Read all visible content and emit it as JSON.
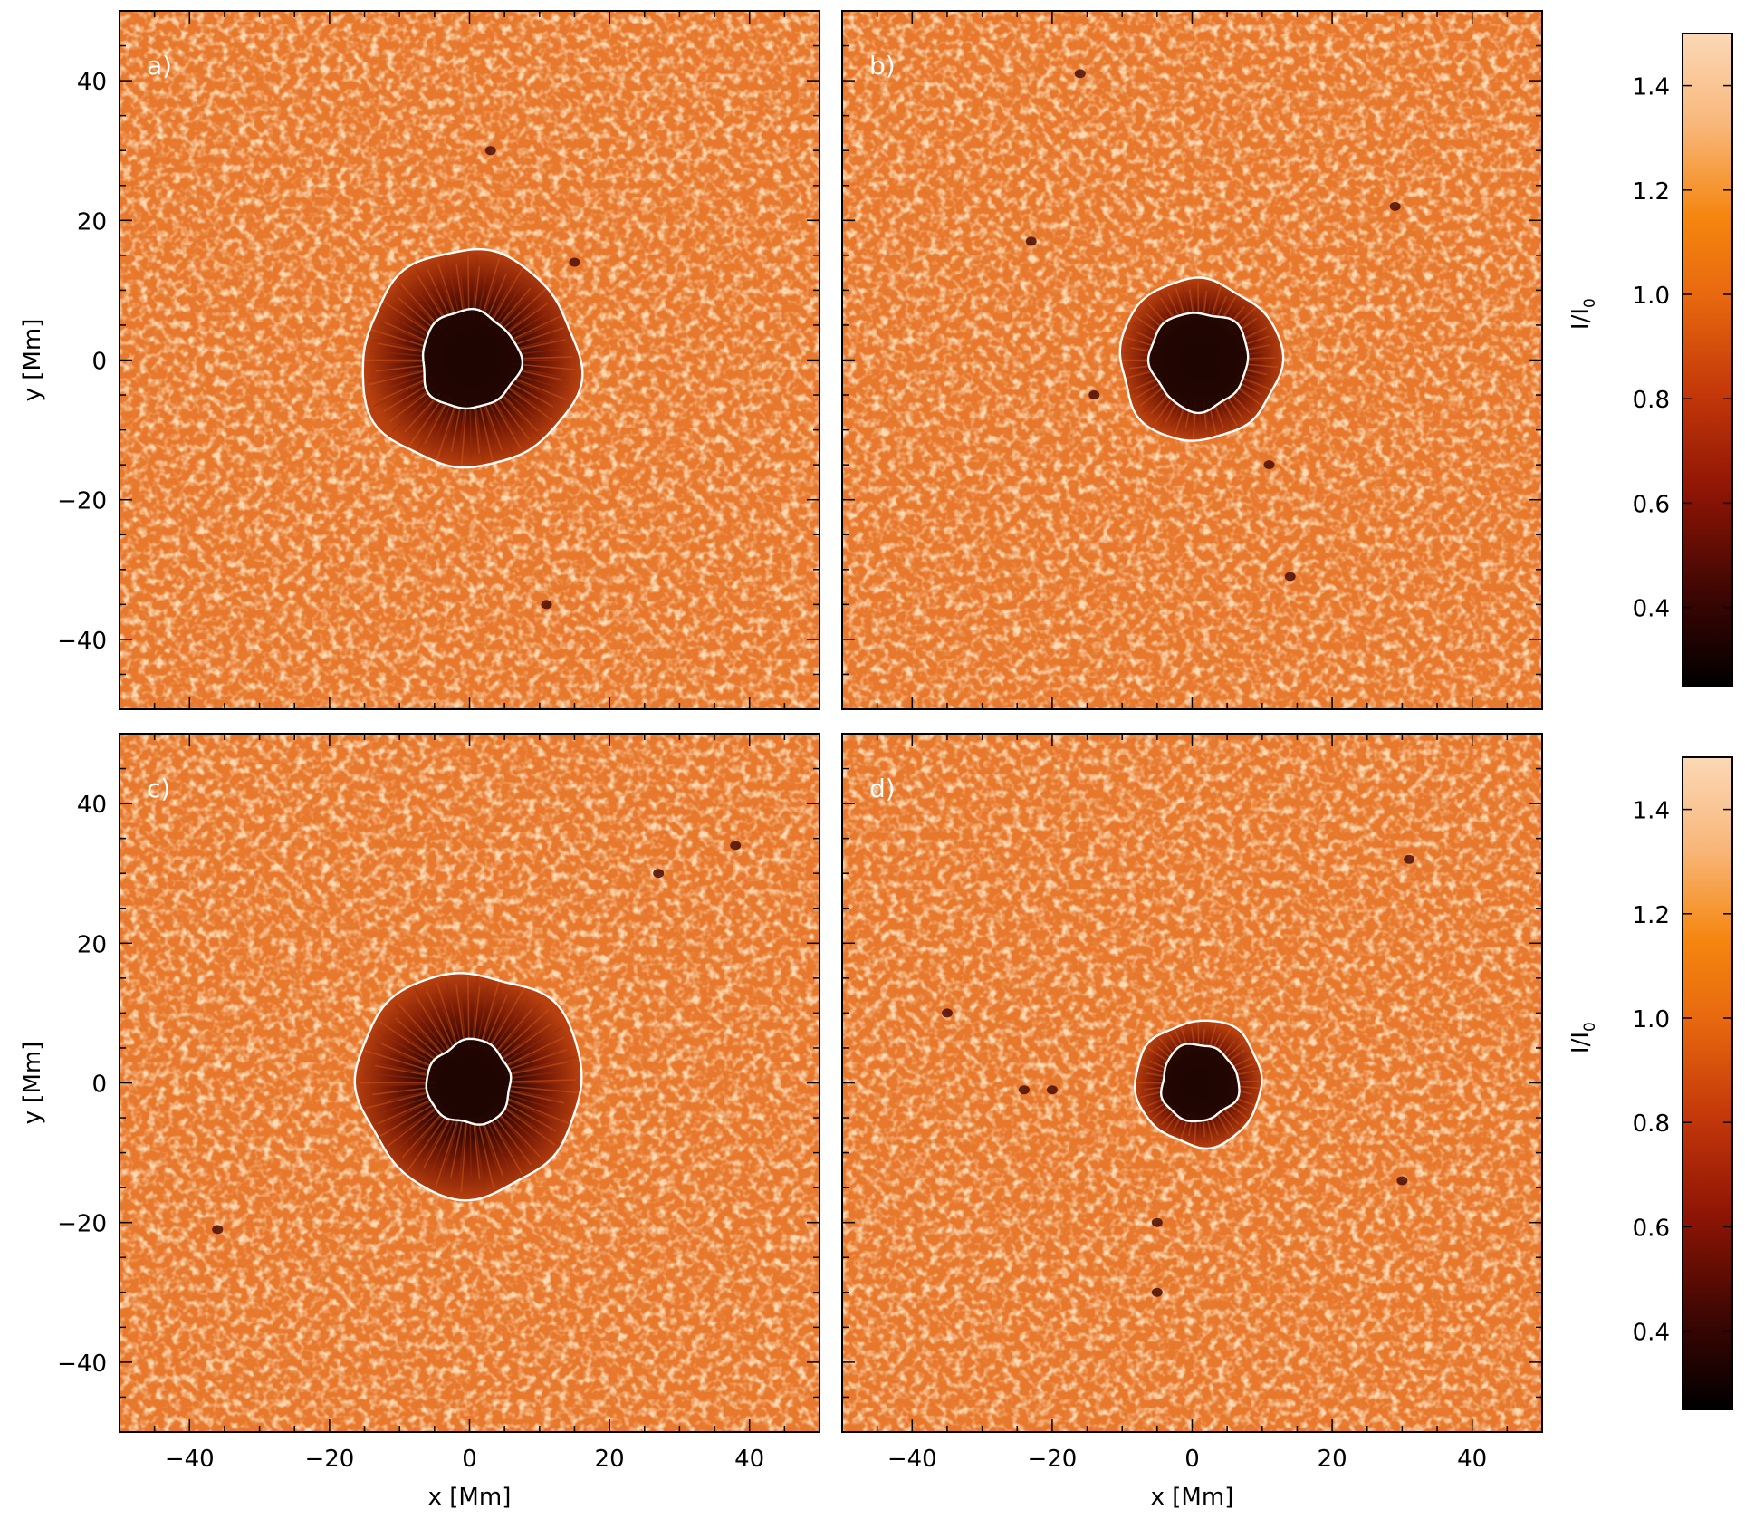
{
  "figure": {
    "xlabel": "x [Mm]",
    "ylabel": "y [Mm]",
    "colorbar_label_main": "I/I",
    "colorbar_label_sub": "0",
    "colors": {
      "photosphere": "#e8782c",
      "granule_bright": "#f6ae72",
      "penumbra": "#7a1c06",
      "umbra": "#1e0502",
      "contour": "#ffffff",
      "axes": "#000000"
    }
  },
  "chart_data": [
    {
      "type": "heatmap",
      "panel_label": "a)",
      "xlim": [
        -50,
        50
      ],
      "ylim": [
        -50,
        50
      ],
      "xticks": [
        -40,
        -20,
        0,
        20,
        40
      ],
      "yticks": [
        -40,
        -20,
        0,
        20,
        40
      ],
      "spot_center": [
        0,
        0
      ],
      "penumbra_radius_Mm": 15.5,
      "umbra_radius_Mm": 7,
      "pores": [
        [
          3,
          30
        ],
        [
          11,
          -35
        ],
        [
          15,
          14
        ]
      ]
    },
    {
      "type": "heatmap",
      "panel_label": "b)",
      "xlim": [
        -50,
        50
      ],
      "ylim": [
        -50,
        50
      ],
      "xticks": [
        -40,
        -20,
        0,
        20,
        40
      ],
      "yticks": [
        -40,
        -20,
        0,
        20,
        40
      ],
      "spot_center": [
        1,
        0
      ],
      "penumbra_radius_Mm": 11.5,
      "umbra_radius_Mm": 7,
      "pores": [
        [
          -16,
          41
        ],
        [
          29,
          22
        ],
        [
          -23,
          17
        ],
        [
          -14,
          -5
        ],
        [
          14,
          -31
        ],
        [
          11,
          -15
        ]
      ]
    },
    {
      "type": "heatmap",
      "panel_label": "c)",
      "xlim": [
        -50,
        50
      ],
      "ylim": [
        -50,
        50
      ],
      "xticks": [
        -40,
        -20,
        0,
        20,
        40
      ],
      "yticks": [
        -40,
        -20,
        0,
        20,
        40
      ],
      "spot_center": [
        0,
        0
      ],
      "penumbra_radius_Mm": 16,
      "umbra_radius_Mm": 6,
      "pores": [
        [
          38,
          34
        ],
        [
          -36,
          -21
        ],
        [
          27,
          30
        ]
      ]
    },
    {
      "type": "heatmap",
      "panel_label": "d)",
      "xlim": [
        -50,
        50
      ],
      "ylim": [
        -50,
        50
      ],
      "xticks": [
        -40,
        -20,
        0,
        20,
        40
      ],
      "yticks": [
        -40,
        -20,
        0,
        20,
        40
      ],
      "spot_center": [
        1,
        0
      ],
      "penumbra_radius_Mm": 9,
      "umbra_radius_Mm": 5.5,
      "pores": [
        [
          31,
          32
        ],
        [
          -35,
          10
        ],
        [
          -20,
          -1
        ],
        [
          -24,
          -1
        ],
        [
          -5,
          -20
        ],
        [
          30,
          -14
        ],
        [
          -5,
          -30
        ]
      ]
    }
  ],
  "colorbars": [
    {
      "type": "colorbar",
      "range": [
        0.25,
        1.5
      ],
      "ticks": [
        "0.4",
        "0.6",
        "0.8",
        "1.0",
        "1.2",
        "1.4"
      ]
    },
    {
      "type": "colorbar",
      "range": [
        0.25,
        1.5
      ],
      "ticks": [
        "0.4",
        "0.6",
        "0.8",
        "1.0",
        "1.2",
        "1.4"
      ]
    }
  ]
}
